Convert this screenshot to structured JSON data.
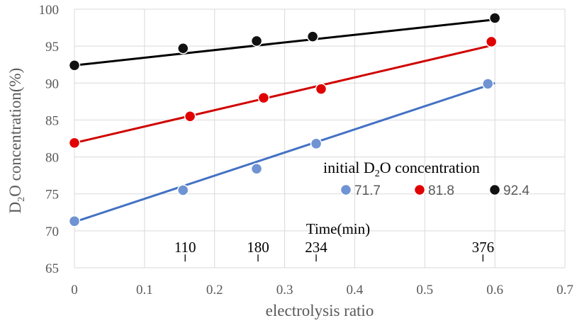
{
  "chart_data": {
    "type": "scatter",
    "xlabel": "electrolysis ratio",
    "ylabel_parts": [
      "D",
      "2",
      "O concentration(%)"
    ],
    "xlim": [
      0,
      0.7
    ],
    "ylim": [
      65,
      100
    ],
    "x_ticks": [
      "0",
      "0.1",
      "0.2",
      "0.3",
      "0.4",
      "0.5",
      "0.6",
      "0.7"
    ],
    "y_ticks": [
      "65",
      "70",
      "75",
      "80",
      "85",
      "90",
      "95",
      "100"
    ],
    "grid": true,
    "legend": {
      "title_parts": [
        "initial D",
        "2",
        "O concentration"
      ],
      "placement": "lower-right"
    },
    "series": [
      {
        "name": "71.7",
        "color": "#6f93d3",
        "line_color": "#4472c4",
        "x": [
          0,
          0.155,
          0.26,
          0.345,
          0.59
        ],
        "y": [
          71.3,
          75.5,
          78.4,
          81.8,
          89.9
        ],
        "fit": [
          [
            0,
            71.2
          ],
          [
            0.6,
            90.0
          ]
        ]
      },
      {
        "name": "81.8",
        "color": "#e00000",
        "line_color": "#d00000",
        "x": [
          0,
          0.165,
          0.27,
          0.352,
          0.595
        ],
        "y": [
          81.9,
          85.5,
          88.0,
          89.2,
          95.6
        ],
        "fit": [
          [
            0,
            81.9
          ],
          [
            0.6,
            95.2
          ]
        ]
      },
      {
        "name": "92.4",
        "color": "#111111",
        "line_color": "#000000",
        "x": [
          0,
          0.155,
          0.26,
          0.34,
          0.6
        ],
        "y": [
          92.4,
          94.7,
          95.7,
          96.3,
          98.8
        ],
        "fit": [
          [
            0,
            92.4
          ],
          [
            0.6,
            98.6
          ]
        ]
      }
    ],
    "time_axis": {
      "label": "Time(min)",
      "y_value": 66.8,
      "ticks": [
        {
          "x": 0.158,
          "label": "110"
        },
        {
          "x": 0.262,
          "label": "180"
        },
        {
          "x": 0.345,
          "label": "234"
        },
        {
          "x": 0.583,
          "label": "376"
        }
      ]
    }
  }
}
